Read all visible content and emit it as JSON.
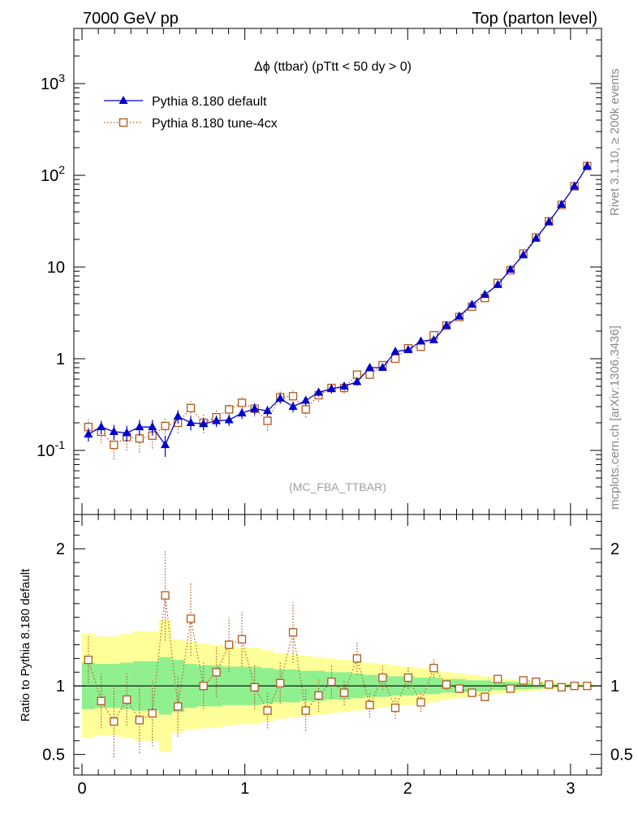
{
  "header": {
    "left": "7000 GeV pp",
    "right": "Top (parton level)"
  },
  "side_labels": {
    "rivet": "Rivet 3.1.10, ≥ 200k events",
    "mcplots": "mcplots.cern.ch [arXiv:1306.3436]"
  },
  "chart_data": [
    {
      "type": "line",
      "panel": "main",
      "title": "Δϕ (ttbar) (pTtt < 50 dy > 0)",
      "watermark": "(MC_FBA_TTBAR)",
      "xlabel": "",
      "ylabel": "",
      "yscale": "log",
      "xlim": [
        -0.05,
        3.19
      ],
      "ylim": [
        0.02,
        4000
      ],
      "y_tick_labels": [
        "10^-1",
        "1",
        "10",
        "10^2",
        "10^3"
      ],
      "x_tick_labels": [
        "0",
        "1",
        "2",
        "3"
      ],
      "legend_position": "top-left",
      "x": [
        0.039,
        0.118,
        0.196,
        0.275,
        0.353,
        0.432,
        0.511,
        0.589,
        0.668,
        0.746,
        0.825,
        0.903,
        0.982,
        1.06,
        1.139,
        1.217,
        1.296,
        1.374,
        1.453,
        1.532,
        1.61,
        1.689,
        1.767,
        1.846,
        1.924,
        2.003,
        2.081,
        2.16,
        2.238,
        2.317,
        2.395,
        2.474,
        2.553,
        2.631,
        2.71,
        2.788,
        2.867,
        2.945,
        3.024,
        3.102
      ],
      "series": [
        {
          "name": "Pythia 8.180 default",
          "color": "#0000cc",
          "marker": "filled-triangle",
          "values": [
            0.15,
            0.18,
            0.16,
            0.155,
            0.18,
            0.18,
            0.115,
            0.235,
            0.2,
            0.195,
            0.21,
            0.215,
            0.255,
            0.285,
            0.27,
            0.37,
            0.3,
            0.35,
            0.43,
            0.47,
            0.5,
            0.56,
            0.8,
            0.8,
            1.2,
            1.25,
            1.55,
            1.6,
            2.3,
            2.9,
            3.9,
            5.0,
            6.4,
            9.4,
            13.5,
            20.5,
            31.0,
            48.0,
            76.0,
            126.0
          ],
          "err": [
            0.025,
            0.03,
            0.03,
            0.03,
            0.035,
            0.035,
            0.03,
            0.04,
            0.035,
            0.03,
            0.03,
            0.03,
            0.035,
            0.04,
            0.035,
            0.045,
            0.04,
            0.04,
            0.045,
            0.05,
            0.05,
            0.05,
            0.06,
            0.06,
            0.07,
            0.07,
            0.08,
            0.08,
            0.1,
            0.12,
            0.14,
            0.16,
            0.2,
            0.25,
            0.3,
            0.4,
            0.5,
            0.7,
            1.0,
            1.5
          ]
        },
        {
          "name": "Pythia 8.180 tune-4cx",
          "color": "#b05a1e",
          "marker": "open-square",
          "values": [
            0.18,
            0.16,
            0.115,
            0.14,
            0.135,
            0.145,
            0.185,
            0.2,
            0.29,
            0.2,
            0.23,
            0.28,
            0.33,
            0.285,
            0.21,
            0.38,
            0.39,
            0.28,
            0.4,
            0.48,
            0.48,
            0.67,
            0.67,
            0.85,
            1.0,
            1.3,
            1.35,
            1.8,
            2.3,
            2.85,
            3.7,
            4.6,
            6.7,
            9.2,
            14.0,
            21.0,
            31.5,
            47.5,
            76.0,
            126.0
          ],
          "err": [
            0.04,
            0.04,
            0.035,
            0.04,
            0.04,
            0.04,
            0.045,
            0.045,
            0.055,
            0.045,
            0.045,
            0.05,
            0.055,
            0.05,
            0.045,
            0.06,
            0.06,
            0.05,
            0.06,
            0.065,
            0.06,
            0.07,
            0.07,
            0.08,
            0.08,
            0.09,
            0.09,
            0.1,
            0.12,
            0.14,
            0.16,
            0.2,
            0.25,
            0.3,
            0.4,
            0.5,
            0.6,
            0.8,
            1.1,
            1.6
          ]
        }
      ]
    },
    {
      "type": "line",
      "panel": "ratio",
      "xlabel": "",
      "ylabel": "Ratio to Pythia 8.180 default",
      "xlim": [
        -0.05,
        3.19
      ],
      "ylim": [
        0.35,
        2.25
      ],
      "y_tick_labels": [
        "0.5",
        "1",
        "2"
      ],
      "x_tick_labels": [
        "0",
        "1",
        "2",
        "3"
      ],
      "reference_line": 1.0,
      "x": [
        0.039,
        0.118,
        0.196,
        0.275,
        0.353,
        0.432,
        0.511,
        0.589,
        0.668,
        0.746,
        0.825,
        0.903,
        0.982,
        1.06,
        1.139,
        1.217,
        1.296,
        1.374,
        1.453,
        1.532,
        1.61,
        1.689,
        1.767,
        1.846,
        1.924,
        2.003,
        2.081,
        2.16,
        2.238,
        2.317,
        2.395,
        2.474,
        2.553,
        2.631,
        2.71,
        2.788,
        2.867,
        2.945,
        3.024,
        3.102
      ],
      "bands": {
        "green": {
          "color": "#90f090",
          "lower": [
            0.83,
            0.84,
            0.84,
            0.83,
            0.82,
            0.82,
            0.79,
            0.81,
            0.84,
            0.85,
            0.85,
            0.86,
            0.86,
            0.86,
            0.87,
            0.88,
            0.88,
            0.89,
            0.89,
            0.9,
            0.9,
            0.91,
            0.92,
            0.92,
            0.93,
            0.93,
            0.94,
            0.94,
            0.95,
            0.95,
            0.96,
            0.96,
            0.97,
            0.97,
            0.975,
            0.98,
            0.985,
            0.99,
            0.99,
            0.995
          ],
          "upper": [
            1.17,
            1.16,
            1.16,
            1.17,
            1.18,
            1.18,
            1.21,
            1.19,
            1.16,
            1.15,
            1.15,
            1.14,
            1.14,
            1.14,
            1.13,
            1.12,
            1.12,
            1.11,
            1.11,
            1.1,
            1.1,
            1.09,
            1.08,
            1.08,
            1.07,
            1.07,
            1.06,
            1.06,
            1.05,
            1.05,
            1.04,
            1.04,
            1.03,
            1.03,
            1.025,
            1.02,
            1.015,
            1.01,
            1.01,
            1.005
          ]
        },
        "yellow": {
          "color": "#ffff99",
          "lower": [
            0.62,
            0.64,
            0.64,
            0.62,
            0.6,
            0.6,
            0.52,
            0.66,
            0.68,
            0.69,
            0.7,
            0.71,
            0.72,
            0.72,
            0.74,
            0.76,
            0.77,
            0.78,
            0.79,
            0.8,
            0.81,
            0.82,
            0.83,
            0.84,
            0.85,
            0.86,
            0.87,
            0.88,
            0.9,
            0.91,
            0.92,
            0.93,
            0.94,
            0.95,
            0.96,
            0.965,
            0.97,
            0.98,
            0.985,
            0.99
          ],
          "upper": [
            1.38,
            1.36,
            1.36,
            1.38,
            1.4,
            1.4,
            1.48,
            1.34,
            1.32,
            1.31,
            1.3,
            1.29,
            1.28,
            1.28,
            1.26,
            1.24,
            1.23,
            1.22,
            1.21,
            1.2,
            1.19,
            1.18,
            1.17,
            1.16,
            1.15,
            1.14,
            1.13,
            1.12,
            1.1,
            1.09,
            1.08,
            1.07,
            1.06,
            1.05,
            1.04,
            1.035,
            1.03,
            1.02,
            1.015,
            1.01
          ]
        }
      },
      "series": [
        {
          "name": "Pythia 8.180 tune-4cx",
          "color": "#b05a1e",
          "marker": "open-square",
          "values": [
            1.19,
            0.89,
            0.74,
            0.9,
            0.75,
            0.8,
            1.66,
            0.85,
            1.49,
            1.0,
            1.1,
            1.3,
            1.34,
            0.99,
            0.82,
            1.02,
            1.39,
            0.82,
            0.93,
            1.03,
            0.95,
            1.2,
            0.86,
            1.06,
            0.84,
            1.06,
            0.88,
            1.13,
            1.01,
            0.98,
            0.95,
            0.92,
            1.05,
            0.98,
            1.04,
            1.03,
            1.01,
            0.99,
            1.0,
            1.0
          ],
          "err": [
            0.17,
            0.2,
            0.26,
            0.19,
            0.24,
            0.24,
            0.33,
            0.22,
            0.27,
            0.17,
            0.18,
            0.2,
            0.2,
            0.16,
            0.13,
            0.15,
            0.22,
            0.15,
            0.12,
            0.12,
            0.09,
            0.12,
            0.09,
            0.09,
            0.08,
            0.08,
            0.07,
            0.07,
            0.04,
            0.03,
            0.03,
            0.03,
            0.02,
            0.02,
            0.015,
            0.01,
            0.01,
            0.01,
            0.01,
            0.01
          ]
        }
      ]
    }
  ]
}
